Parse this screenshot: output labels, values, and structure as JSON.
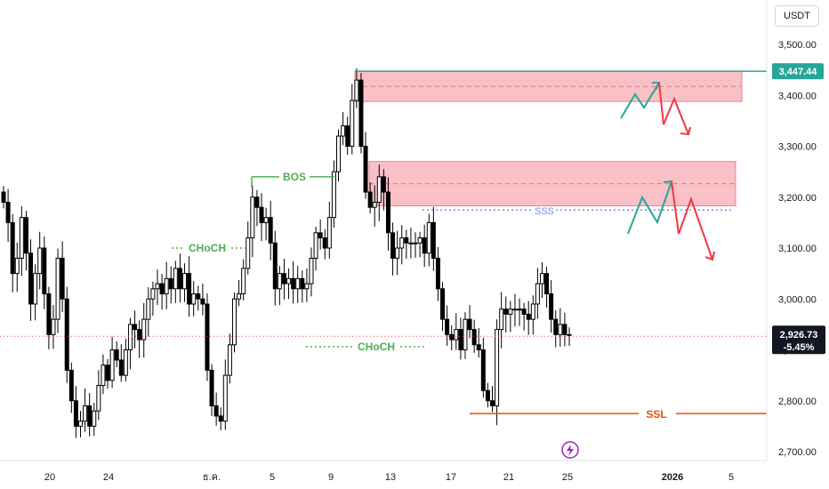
{
  "chart_data": {
    "type": "candlestick",
    "currency": "USDT",
    "y_ticks": [
      2700,
      2800,
      2900,
      3000,
      3100,
      3200,
      3300,
      3400,
      3500
    ],
    "y_tick_labels": [
      "2,700.00",
      "2,800.00",
      "2,900.00",
      "3,000.00",
      "3,100.00",
      "3,200.00",
      "3,300.00",
      "3,400.00",
      "3,500.00"
    ],
    "ylim": [
      2680,
      3560
    ],
    "x_labels": [
      "20",
      "24",
      "ธ.ค.",
      "5",
      "9",
      "13",
      "17",
      "21",
      "25",
      "2026",
      "5"
    ],
    "x_label_bold": "2026",
    "last_price": 2926.73,
    "last_price_label": "2,926.73",
    "change_label": "-5.45%",
    "high_price": 3447.44,
    "high_price_label": "3,447.44",
    "close_series": [
      3190,
      3150,
      3050,
      3080,
      3160,
      3090,
      2990,
      3050,
      3100,
      3010,
      2930,
      2960,
      3080,
      3000,
      2860,
      2800,
      2750,
      2760,
      2790,
      2750,
      2780,
      2830,
      2870,
      2840,
      2900,
      2880,
      2850,
      2900,
      2950,
      2940,
      2920,
      2960,
      3000,
      3020,
      3030,
      3010,
      3040,
      3020,
      3060,
      3020,
      3050,
      2990,
      3010,
      3000,
      2990,
      2860,
      2790,
      2770,
      2760,
      2850,
      2910,
      3000,
      3010,
      3060,
      3120,
      3200,
      3180,
      3150,
      3160,
      3110,
      3020,
      3050,
      3030,
      3040,
      3020,
      3040,
      3020,
      3030,
      3080,
      3130,
      3120,
      3100,
      3160,
      3250,
      3320,
      3340,
      3300,
      3390,
      3430,
      3300,
      3210,
      3180,
      3190,
      3240,
      3210,
      3130,
      3080,
      3100,
      3120,
      3110,
      3110,
      3110,
      3120,
      3090,
      3150,
      3080,
      3020,
      2960,
      2930,
      2920,
      2940,
      2900,
      2960,
      2940,
      2910,
      2900,
      2820,
      2800,
      2790,
      2940,
      2980,
      2970,
      2980,
      2980,
      2980,
      2970,
      2960,
      2990,
      3030,
      3050,
      3010,
      2960,
      2930,
      2950,
      2930,
      2930
    ],
    "annotations": {
      "bos": "BOS",
      "choch_upper": "CHoCH",
      "choch_lower": "CHoCH",
      "sss": "SSS",
      "ssl": "SSL",
      "supply_zone_upper": [
        3388,
        3447
      ],
      "supply_zone_lower": [
        3183,
        3270
      ],
      "sss_level": 3175,
      "ssl_level": 2775,
      "bos_level": 3240,
      "choch_upper_level": 3100,
      "choch_lower_level": 2900
    },
    "colors": {
      "zone_fill": "#f9c0c6",
      "zone_border": "#f0808c",
      "green": "#4caf50",
      "teal": "#26a69a",
      "red": "#f23645",
      "orange": "#e65100",
      "blue_dotted": "#7b8cde",
      "purple": "#9c27b0"
    },
    "event_icon": "lightning-icon"
  }
}
